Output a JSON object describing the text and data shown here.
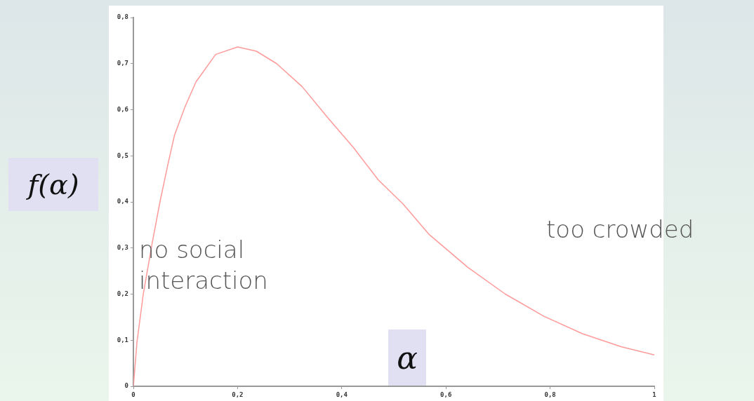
{
  "chart_data": {
    "type": "line",
    "xlabel": "α",
    "ylabel": "f(α)",
    "grid": false,
    "legend": false,
    "marker": "none",
    "line_style": "solid",
    "xlim": [
      0,
      1
    ],
    "ylim": [
      0,
      0.8
    ],
    "xticks": [
      0,
      {
        "value": 0.2,
        "label": "0,2"
      },
      {
        "value": 0.4,
        "label": "0,4"
      },
      {
        "value": 0.6,
        "label": "0,6"
      },
      {
        "value": 0.8,
        "label": "0,8"
      },
      1
    ],
    "yticks": [
      0,
      {
        "value": 0.1,
        "label": "0,1"
      },
      {
        "value": 0.2,
        "label": "0,2"
      },
      {
        "value": 0.3,
        "label": "0,3"
      },
      {
        "value": 0.4,
        "label": "0,4"
      },
      {
        "value": 0.5,
        "label": "0,5"
      },
      {
        "value": 0.6,
        "label": "0,6"
      },
      {
        "value": 0.7,
        "label": "0,7"
      },
      {
        "value": 0.8,
        "label": "0,8"
      }
    ],
    "annotations": [
      "no social\ninteraction",
      "too crowded"
    ],
    "series": [
      {
        "color": "#ff9a9a",
        "x": [
          0,
          0.007,
          0.019,
          0.036,
          0.051,
          0.066,
          0.079,
          0.099,
          0.12,
          0.158,
          0.2,
          0.236,
          0.275,
          0.324,
          0.373,
          0.423,
          0.47,
          0.518,
          0.568,
          0.642,
          0.714,
          0.788,
          0.862,
          0.936,
          1
        ],
        "values": [
          0,
          0.097,
          0.2,
          0.31,
          0.4,
          0.48,
          0.545,
          0.606,
          0.66,
          0.72,
          0.736,
          0.727,
          0.7,
          0.65,
          0.583,
          0.517,
          0.448,
          0.395,
          0.329,
          0.258,
          0.2,
          0.152,
          0.114,
          0.086,
          0.068
        ]
      }
    ]
  }
}
